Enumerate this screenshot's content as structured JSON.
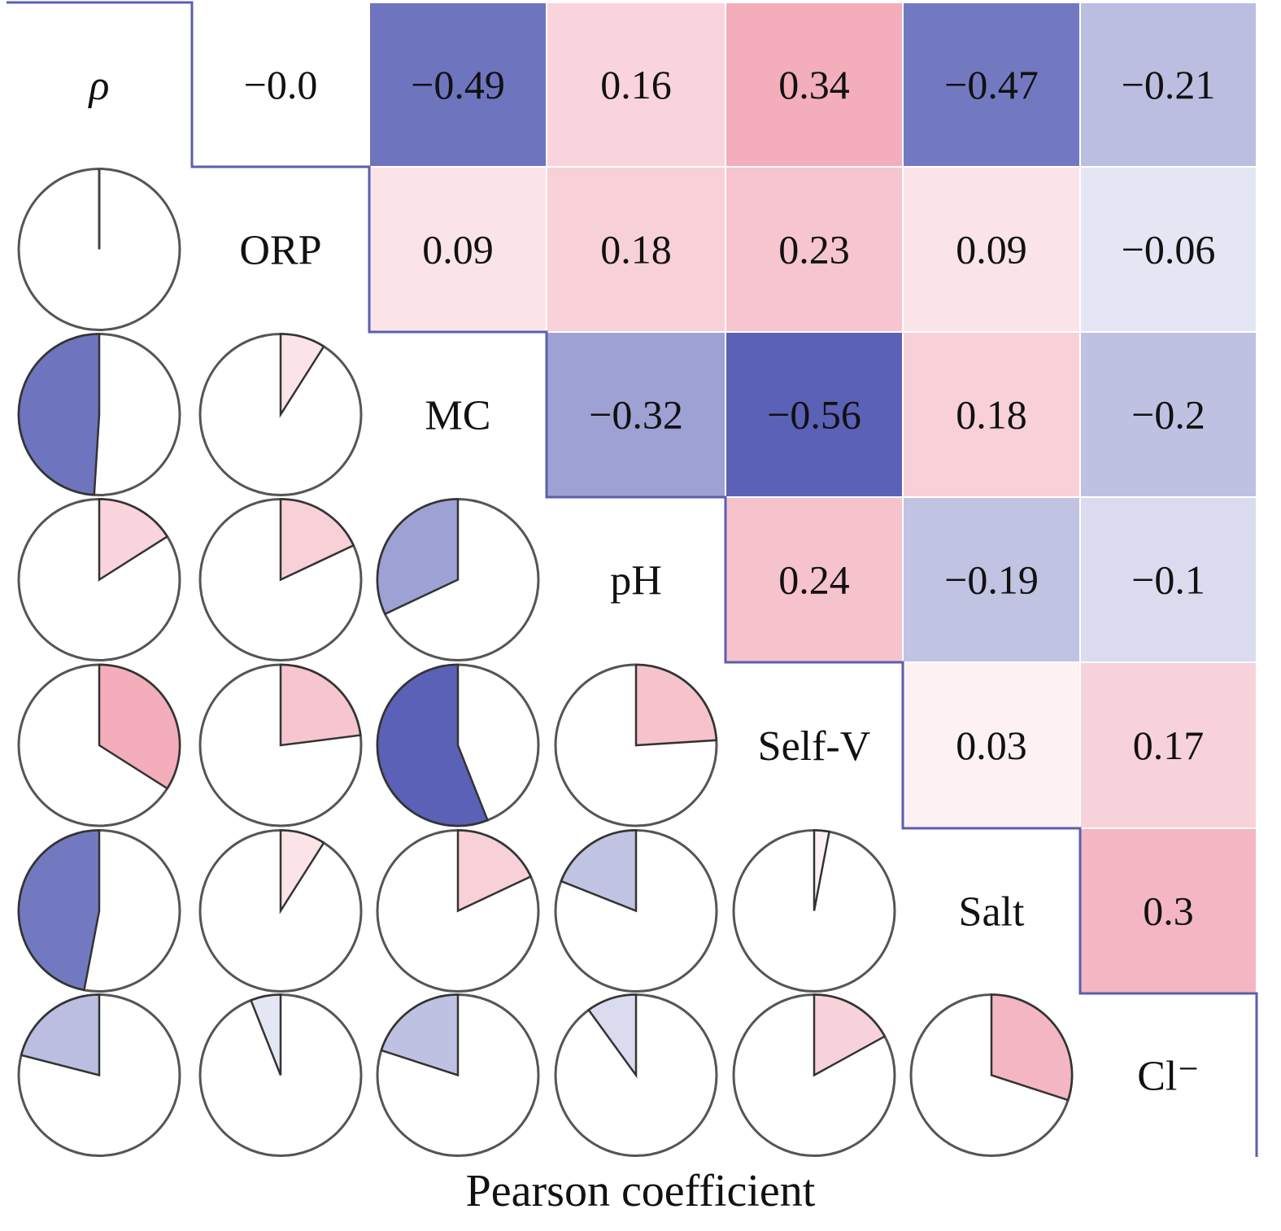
{
  "chart_data": {
    "type": "heatmap",
    "title": "",
    "xlabel": "Pearson coefficient",
    "ylabel": "",
    "variables": [
      "ρ",
      "ORP",
      "MC",
      "pH",
      "Self-V",
      "Salt",
      "Cl⁻"
    ],
    "upper_triangle": "square cells with printed coefficient",
    "lower_triangle": "pie glyphs, filled fraction = |coefficient|",
    "colors": {
      "positive": "#e8657f",
      "negative": "#3c44a8",
      "border": "#5a5fb0"
    },
    "pairs": [
      {
        "row": "ρ",
        "col": "ORP",
        "label": "−0.0",
        "value": 0.0
      },
      {
        "row": "ρ",
        "col": "MC",
        "label": "−0.49",
        "value": -0.49
      },
      {
        "row": "ρ",
        "col": "pH",
        "label": "0.16",
        "value": 0.16
      },
      {
        "row": "ρ",
        "col": "Self-V",
        "label": "0.34",
        "value": 0.34
      },
      {
        "row": "ρ",
        "col": "Salt",
        "label": "−0.47",
        "value": -0.47
      },
      {
        "row": "ρ",
        "col": "Cl⁻",
        "label": "−0.21",
        "value": -0.21
      },
      {
        "row": "ORP",
        "col": "MC",
        "label": "0.09",
        "value": 0.09
      },
      {
        "row": "ORP",
        "col": "pH",
        "label": "0.18",
        "value": 0.18
      },
      {
        "row": "ORP",
        "col": "Self-V",
        "label": "0.23",
        "value": 0.23
      },
      {
        "row": "ORP",
        "col": "Salt",
        "label": "0.09",
        "value": 0.09
      },
      {
        "row": "ORP",
        "col": "Cl⁻",
        "label": "−0.06",
        "value": -0.06
      },
      {
        "row": "MC",
        "col": "pH",
        "label": "−0.32",
        "value": -0.32
      },
      {
        "row": "MC",
        "col": "Self-V",
        "label": "−0.56",
        "value": -0.56
      },
      {
        "row": "MC",
        "col": "Salt",
        "label": "0.18",
        "value": 0.18
      },
      {
        "row": "MC",
        "col": "Cl⁻",
        "label": "−0.2",
        "value": -0.2
      },
      {
        "row": "pH",
        "col": "Self-V",
        "label": "0.24",
        "value": 0.24
      },
      {
        "row": "pH",
        "col": "Salt",
        "label": "−0.19",
        "value": -0.19
      },
      {
        "row": "pH",
        "col": "Cl⁻",
        "label": "−0.1",
        "value": -0.1
      },
      {
        "row": "Self-V",
        "col": "Salt",
        "label": "0.03",
        "value": 0.03
      },
      {
        "row": "Self-V",
        "col": "Cl⁻",
        "label": "0.17",
        "value": 0.17
      },
      {
        "row": "Salt",
        "col": "Cl⁻",
        "label": "0.3",
        "value": 0.3
      }
    ]
  }
}
